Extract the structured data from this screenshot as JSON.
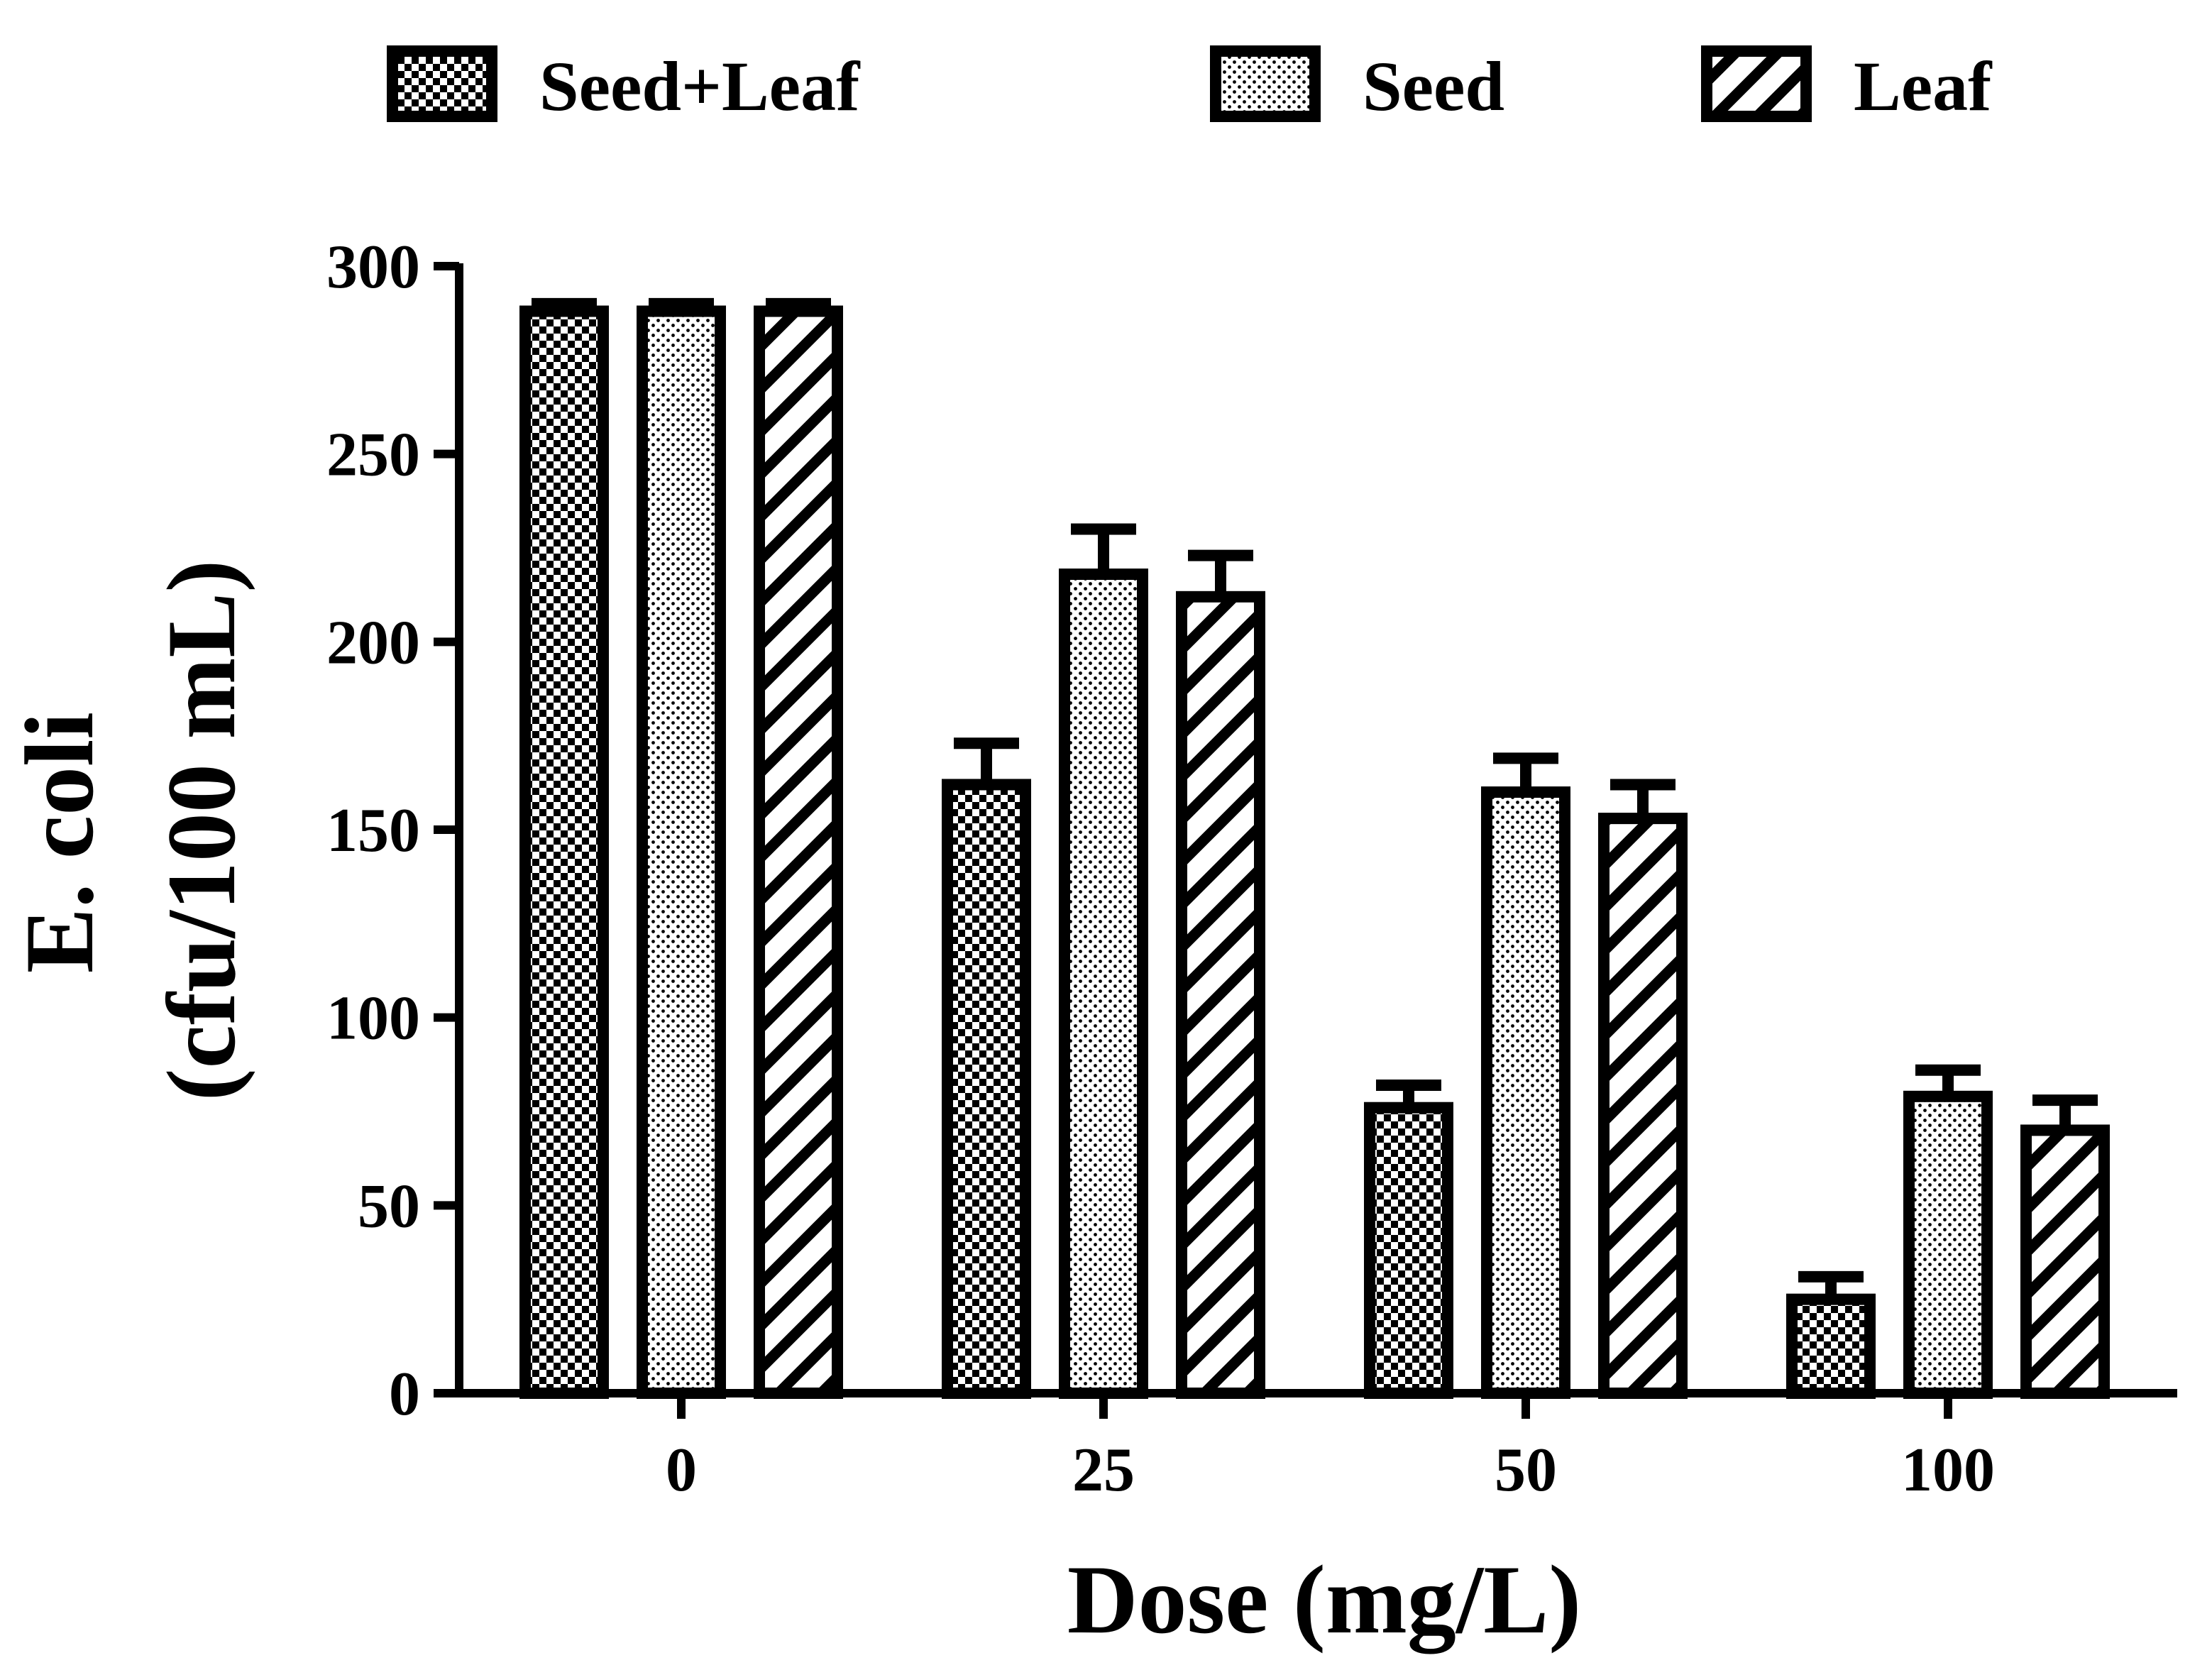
{
  "chart_data": {
    "type": "bar",
    "title": "",
    "xlabel": "Dose (mg/L)",
    "ylabel_line1": "E. coli",
    "ylabel_line2": "(cfu/100 mL)",
    "ylim": [
      0,
      300
    ],
    "yticks": [
      0,
      50,
      100,
      150,
      200,
      250,
      300
    ],
    "categories": [
      "0",
      "25",
      "50",
      "100"
    ],
    "legend_position": "top",
    "series": [
      {
        "name": "Seed+Leaf",
        "pattern": "checker",
        "values": [
          288,
          162,
          76,
          25
        ],
        "errors": [
          2,
          11,
          6,
          6
        ]
      },
      {
        "name": "Seed",
        "pattern": "dots",
        "values": [
          288,
          218,
          160,
          79
        ],
        "errors": [
          2,
          12,
          9,
          7
        ]
      },
      {
        "name": "Leaf",
        "pattern": "diagonal",
        "values": [
          288,
          212,
          153,
          70
        ],
        "errors": [
          2,
          11,
          9,
          8
        ]
      }
    ],
    "colors": {
      "ink": "#000000",
      "background": "#ffffff"
    }
  }
}
